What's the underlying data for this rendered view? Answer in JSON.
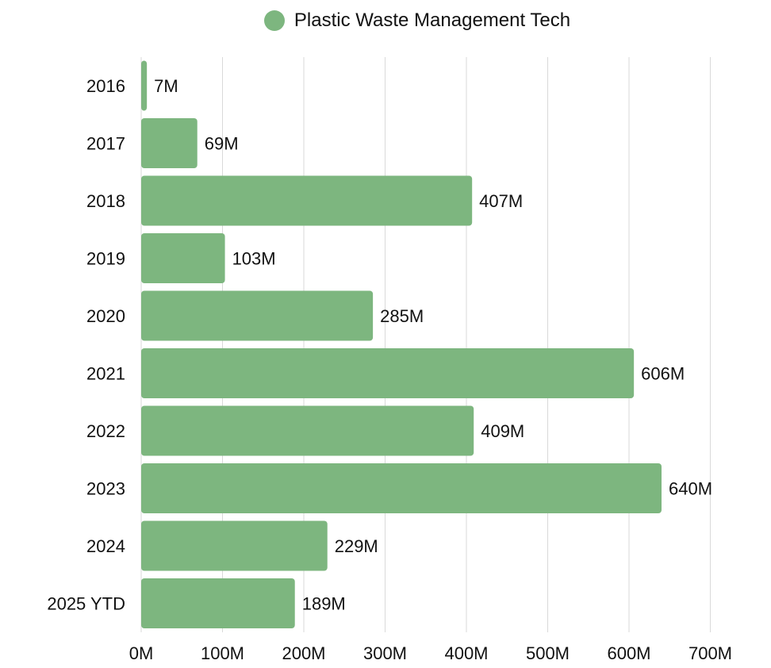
{
  "chart_data": {
    "type": "bar",
    "orientation": "horizontal",
    "title": "",
    "xlabel": "",
    "ylabel": "",
    "categories": [
      "2016",
      "2017",
      "2018",
      "2019",
      "2020",
      "2021",
      "2022",
      "2023",
      "2024",
      "2025 YTD"
    ],
    "series": [
      {
        "name": "Plastic Waste Management Tech",
        "color": "#7db67f",
        "values": [
          7,
          69,
          407,
          103,
          285,
          606,
          409,
          640,
          229,
          189
        ],
        "labels": [
          "7M",
          "69M",
          "407M",
          "103M",
          "285M",
          "606M",
          "409M",
          "640M",
          "229M",
          "189M"
        ]
      }
    ],
    "xlim": [
      0,
      700
    ],
    "xticks": [
      0,
      100,
      200,
      300,
      400,
      500,
      600,
      700
    ],
    "xtick_labels": [
      "0M",
      "100M",
      "200M",
      "300M",
      "400M",
      "500M",
      "600M",
      "700M"
    ],
    "grid": true,
    "legend_position": "top"
  }
}
